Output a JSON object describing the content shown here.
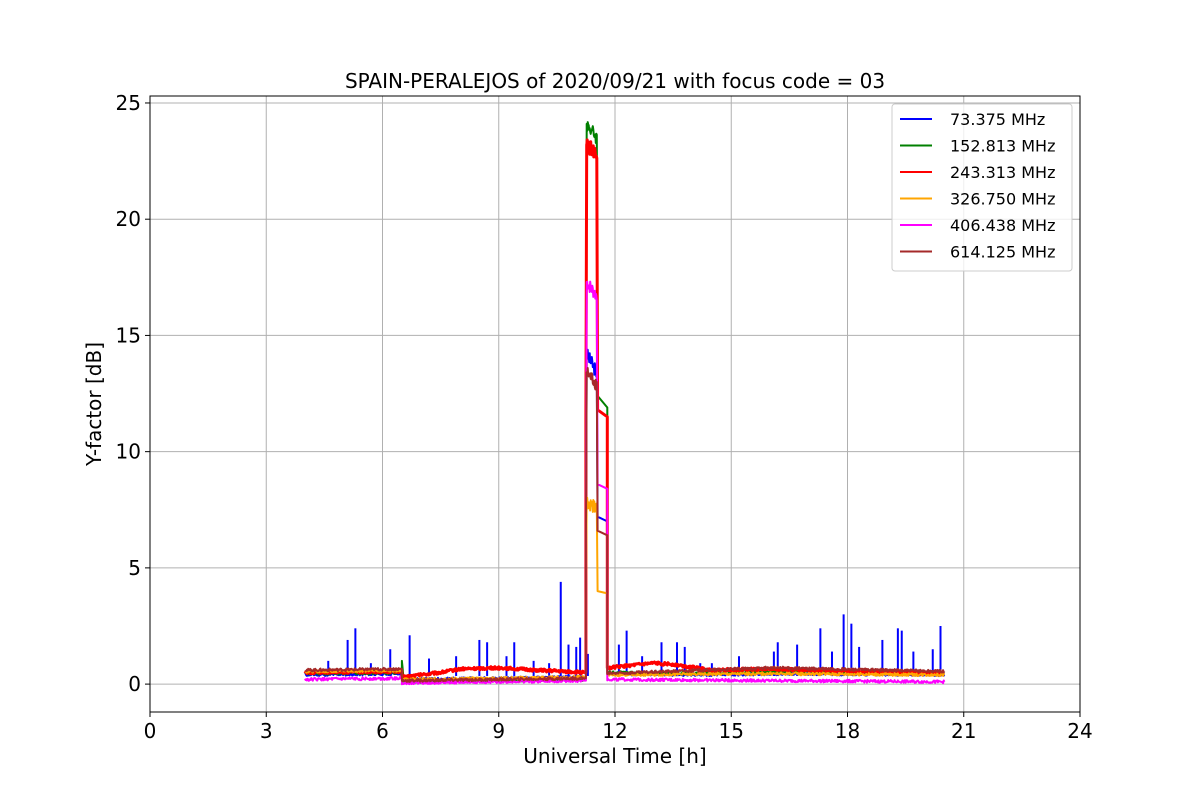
{
  "chart_data": {
    "type": "line",
    "title": "SPAIN-PERALEJOS of 2020/09/21 with focus code = 03",
    "xlabel": "Universal Time [h]",
    "ylabel": "Y-factor [dB]",
    "xlim": [
      0,
      24
    ],
    "ylim": [
      -1.2,
      25.3
    ],
    "xticks": [
      0,
      3,
      6,
      9,
      12,
      15,
      18,
      21,
      24
    ],
    "yticks": [
      0,
      5,
      10,
      15,
      20,
      25
    ],
    "grid": true,
    "legend_position": "top-right",
    "series": [
      {
        "name": " 73.375 MHz",
        "color": "#0000ff",
        "baseline": [
          [
            4.0,
            0.4
          ],
          [
            6.5,
            0.45
          ],
          [
            6.5,
            0.2
          ],
          [
            9.0,
            0.25
          ],
          [
            11.2,
            0.3
          ],
          [
            11.6,
            0.3
          ],
          [
            11.8,
            0.45
          ],
          [
            14.0,
            0.4
          ],
          [
            16.5,
            0.45
          ],
          [
            20.5,
            0.4
          ]
        ],
        "spikes": [
          [
            4.6,
            1.0
          ],
          [
            5.1,
            1.9
          ],
          [
            5.3,
            2.4
          ],
          [
            5.7,
            0.9
          ],
          [
            6.2,
            1.5
          ],
          [
            6.7,
            2.1
          ],
          [
            7.2,
            1.1
          ],
          [
            7.9,
            1.2
          ],
          [
            8.5,
            1.9
          ],
          [
            8.7,
            1.8
          ],
          [
            9.2,
            1.2
          ],
          [
            9.4,
            1.8
          ],
          [
            9.9,
            1.0
          ],
          [
            10.3,
            0.9
          ],
          [
            10.6,
            4.4
          ],
          [
            10.8,
            1.7
          ],
          [
            11.0,
            1.6
          ],
          [
            11.1,
            2.0
          ],
          [
            11.3,
            1.3
          ],
          [
            12.1,
            1.7
          ],
          [
            12.3,
            2.3
          ],
          [
            12.7,
            1.2
          ],
          [
            13.2,
            1.8
          ],
          [
            13.6,
            1.8
          ],
          [
            13.8,
            1.6
          ],
          [
            14.2,
            0.9
          ],
          [
            14.5,
            0.9
          ],
          [
            15.2,
            1.2
          ],
          [
            16.1,
            1.4
          ],
          [
            16.2,
            1.8
          ],
          [
            16.7,
            1.7
          ],
          [
            17.3,
            2.4
          ],
          [
            17.6,
            1.4
          ],
          [
            17.9,
            3.0
          ],
          [
            18.1,
            2.6
          ],
          [
            18.3,
            1.6
          ],
          [
            18.9,
            1.9
          ],
          [
            19.3,
            2.4
          ],
          [
            19.4,
            2.3
          ],
          [
            19.7,
            1.4
          ],
          [
            20.2,
            1.5
          ],
          [
            20.4,
            2.5
          ]
        ],
        "pulse": {
          "rise": 11.25,
          "top_start": 14.2,
          "top_end": 13.4,
          "drop": 11.55,
          "tail_start": 7.2,
          "tail_x": 11.55,
          "tail_end_x": 11.8,
          "tail_end": 7.0,
          "step": 3.8
        }
      },
      {
        "name": "152.813 MHz",
        "color": "#008000",
        "baseline": [
          [
            4.0,
            0.45
          ],
          [
            6.5,
            0.5
          ],
          [
            6.5,
            1.0
          ],
          [
            6.55,
            0.1
          ],
          [
            9.0,
            0.15
          ],
          [
            11.2,
            0.2
          ],
          [
            11.8,
            0.5
          ],
          [
            14.0,
            0.45
          ],
          [
            16.5,
            0.55
          ],
          [
            20.5,
            0.5
          ]
        ],
        "spikes": [],
        "pulse": {
          "rise": 11.25,
          "top_start": 24.1,
          "top_end": 23.5,
          "drop": 11.55,
          "tail_start": 12.4,
          "tail_x": 11.55,
          "tail_end_x": 11.8,
          "tail_end": 11.9,
          "step": 11.6
        }
      },
      {
        "name": "243.313 MHz",
        "color": "#ff0000",
        "baseline": [
          [
            4.0,
            0.5
          ],
          [
            6.5,
            0.55
          ],
          [
            6.5,
            0.3
          ],
          [
            7.5,
            0.5
          ],
          [
            8.0,
            0.65
          ],
          [
            9.0,
            0.7
          ],
          [
            10.0,
            0.6
          ],
          [
            11.2,
            0.5
          ],
          [
            11.8,
            0.7
          ],
          [
            13.0,
            0.9
          ],
          [
            13.5,
            0.85
          ],
          [
            14.5,
            0.6
          ],
          [
            16.0,
            0.65
          ],
          [
            20.5,
            0.45
          ]
        ],
        "spikes": [],
        "pulse": {
          "rise": 11.25,
          "top_start": 23.2,
          "top_end": 22.8,
          "drop": 11.55,
          "tail_start": 11.8,
          "tail_x": 11.55,
          "tail_end_x": 11.8,
          "tail_end": 11.5,
          "step": 11.4
        }
      },
      {
        "name": "326.750 MHz",
        "color": "#ffa500",
        "baseline": [
          [
            4.0,
            0.55
          ],
          [
            6.5,
            0.6
          ],
          [
            6.5,
            0.2
          ],
          [
            9.0,
            0.25
          ],
          [
            11.2,
            0.3
          ],
          [
            11.8,
            0.4
          ],
          [
            16.0,
            0.45
          ],
          [
            20.5,
            0.4
          ]
        ],
        "spikes": [],
        "pulse": {
          "rise": 11.25,
          "top_start": 7.9,
          "top_end": 7.5,
          "drop": 11.55,
          "tail_start": 4.0,
          "tail_x": 11.55,
          "tail_end_x": 11.8,
          "tail_end": 3.9,
          "step": 3.7
        }
      },
      {
        "name": "406.438 MHz",
        "color": "#ff00ff",
        "baseline": [
          [
            4.0,
            0.2
          ],
          [
            6.5,
            0.25
          ],
          [
            6.5,
            0.05
          ],
          [
            9.0,
            0.1
          ],
          [
            11.2,
            0.15
          ],
          [
            11.8,
            0.2
          ],
          [
            16.0,
            0.15
          ],
          [
            20.5,
            0.1
          ]
        ],
        "spikes": [],
        "pulse": {
          "rise": 11.25,
          "top_start": 17.3,
          "top_end": 16.7,
          "drop": 11.55,
          "tail_start": 8.6,
          "tail_x": 11.55,
          "tail_end_x": 11.8,
          "tail_end": 8.4,
          "step": 8.3
        }
      },
      {
        "name": "614.125 MHz",
        "color": "#a52a2a",
        "baseline": [
          [
            4.0,
            0.6
          ],
          [
            6.5,
            0.65
          ],
          [
            6.5,
            0.15
          ],
          [
            9.0,
            0.2
          ],
          [
            11.2,
            0.25
          ],
          [
            11.8,
            0.45
          ],
          [
            16.0,
            0.7
          ],
          [
            17.5,
            0.65
          ],
          [
            20.5,
            0.55
          ]
        ],
        "spikes": [],
        "pulse": {
          "rise": 11.25,
          "top_start": 13.4,
          "top_end": 12.9,
          "drop": 11.55,
          "tail_start": 6.6,
          "tail_x": 11.55,
          "tail_end_x": 11.8,
          "tail_end": 6.4,
          "step": 6.3
        }
      }
    ]
  }
}
